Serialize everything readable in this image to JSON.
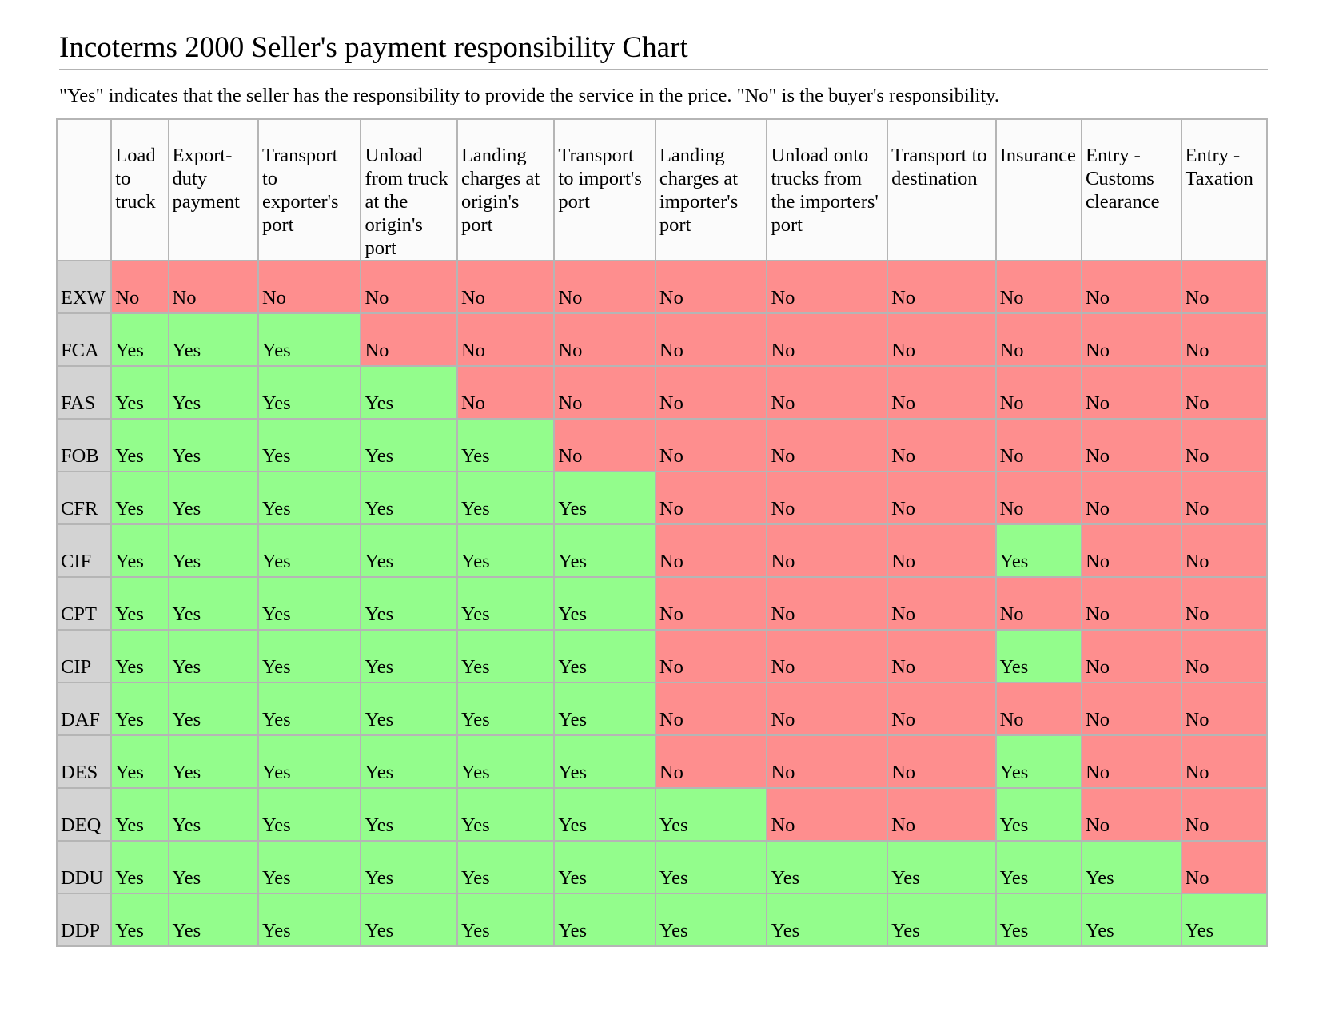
{
  "title": "Incoterms 2000 Seller's payment responsibility Chart",
  "subtitle": "\"Yes\" indicates that the seller has the responsibility to provide the service in the price. \"No\" is the buyer's responsibility.",
  "colors": {
    "yes": "#93fd8c",
    "no": "#fe8e8e",
    "row_header": "#d3d3d3",
    "border": "#b5b5b5"
  },
  "columns": [
    "Load to truck",
    "Export-duty payment",
    "Transport to exporter's port",
    "Unload from truck at the origin's port",
    "Landing charges at origin's port",
    "Transport to import's port",
    "Landing charges at importer's port",
    "Unload onto trucks from the importers' port",
    "Transport to destination",
    "Insurance",
    "Entry - Customs clearance",
    "Entry - Taxation"
  ],
  "rows": [
    {
      "term": "EXW",
      "cells": [
        "No",
        "No",
        "No",
        "No",
        "No",
        "No",
        "No",
        "No",
        "No",
        "No",
        "No",
        "No"
      ]
    },
    {
      "term": "FCA",
      "cells": [
        "Yes",
        "Yes",
        "Yes",
        "No",
        "No",
        "No",
        "No",
        "No",
        "No",
        "No",
        "No",
        "No"
      ]
    },
    {
      "term": "FAS",
      "cells": [
        "Yes",
        "Yes",
        "Yes",
        "Yes",
        "No",
        "No",
        "No",
        "No",
        "No",
        "No",
        "No",
        "No"
      ]
    },
    {
      "term": "FOB",
      "cells": [
        "Yes",
        "Yes",
        "Yes",
        "Yes",
        "Yes",
        "No",
        "No",
        "No",
        "No",
        "No",
        "No",
        "No"
      ]
    },
    {
      "term": "CFR",
      "cells": [
        "Yes",
        "Yes",
        "Yes",
        "Yes",
        "Yes",
        "Yes",
        "No",
        "No",
        "No",
        "No",
        "No",
        "No"
      ]
    },
    {
      "term": "CIF",
      "cells": [
        "Yes",
        "Yes",
        "Yes",
        "Yes",
        "Yes",
        "Yes",
        "No",
        "No",
        "No",
        "Yes",
        "No",
        "No"
      ]
    },
    {
      "term": "CPT",
      "cells": [
        "Yes",
        "Yes",
        "Yes",
        "Yes",
        "Yes",
        "Yes",
        "No",
        "No",
        "No",
        "No",
        "No",
        "No"
      ]
    },
    {
      "term": "CIP",
      "cells": [
        "Yes",
        "Yes",
        "Yes",
        "Yes",
        "Yes",
        "Yes",
        "No",
        "No",
        "No",
        "Yes",
        "No",
        "No"
      ]
    },
    {
      "term": "DAF",
      "cells": [
        "Yes",
        "Yes",
        "Yes",
        "Yes",
        "Yes",
        "Yes",
        "No",
        "No",
        "No",
        "No",
        "No",
        "No"
      ]
    },
    {
      "term": "DES",
      "cells": [
        "Yes",
        "Yes",
        "Yes",
        "Yes",
        "Yes",
        "Yes",
        "No",
        "No",
        "No",
        "Yes",
        "No",
        "No"
      ]
    },
    {
      "term": "DEQ",
      "cells": [
        "Yes",
        "Yes",
        "Yes",
        "Yes",
        "Yes",
        "Yes",
        "Yes",
        "No",
        "No",
        "Yes",
        "No",
        "No"
      ]
    },
    {
      "term": "DDU",
      "cells": [
        "Yes",
        "Yes",
        "Yes",
        "Yes",
        "Yes",
        "Yes",
        "Yes",
        "Yes",
        "Yes",
        "Yes",
        "Yes",
        "No"
      ]
    },
    {
      "term": "DDP",
      "cells": [
        "Yes",
        "Yes",
        "Yes",
        "Yes",
        "Yes",
        "Yes",
        "Yes",
        "Yes",
        "Yes",
        "Yes",
        "Yes",
        "Yes"
      ]
    }
  ]
}
